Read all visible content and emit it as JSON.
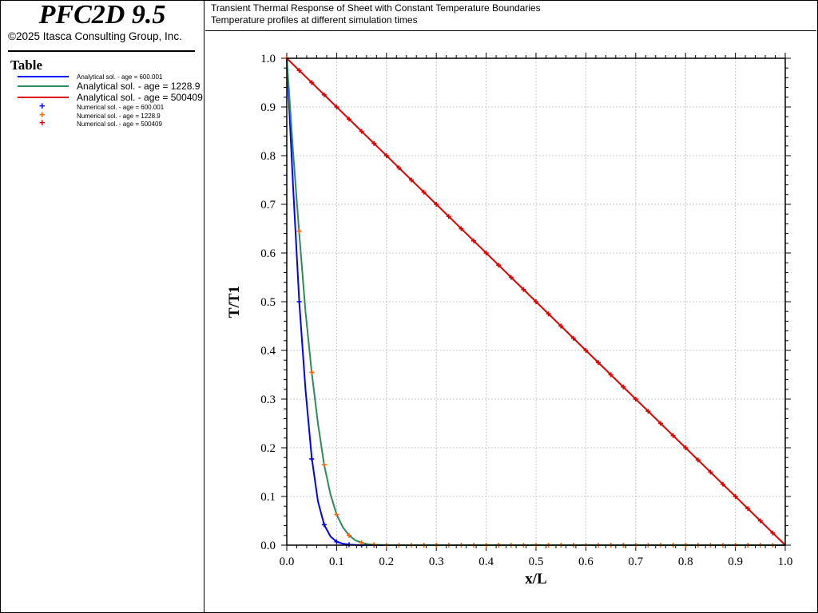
{
  "app": {
    "title": "PFC2D 9.5",
    "copyright": "©2025 Itasca Consulting Group, Inc."
  },
  "legend": {
    "title": "Table",
    "entries": [
      {
        "label": "Analytical sol. - age = 600.001",
        "kind": "line",
        "color": "#0000ff",
        "size": "small"
      },
      {
        "label": "Analytical sol. - age = 1228.9",
        "kind": "line",
        "color": "#2e8b57",
        "size": "big"
      },
      {
        "label": "Analytical sol. - age = 500409",
        "kind": "line",
        "color": "#e00000",
        "size": "big"
      },
      {
        "label": "Numerical sol. - age = 600.001",
        "kind": "marker",
        "color": "#0000ff",
        "size": "small"
      },
      {
        "label": "Numerical sol. - age = 1228.9",
        "kind": "marker",
        "color": "#ff6600",
        "size": "small"
      },
      {
        "label": "Numerical sol. - age = 500409",
        "kind": "marker",
        "color": "#e00000",
        "size": "small"
      }
    ]
  },
  "header": {
    "line1": "Transient Thermal Response of Sheet with Constant Temperature Boundaries",
    "line2": "Temperature profiles at different simulation times"
  },
  "chart_data": {
    "type": "line",
    "xlabel": "x/L",
    "ylabel": "T/T1",
    "xlim": [
      0,
      1
    ],
    "ylim": [
      0,
      1
    ],
    "xticks": [
      "0.0",
      "0.1",
      "0.2",
      "0.3",
      "0.4",
      "0.5",
      "0.6",
      "0.7",
      "0.8",
      "0.9",
      "1.0"
    ],
    "yticks": [
      "0.0",
      "0.1",
      "0.2",
      "0.3",
      "0.4",
      "0.5",
      "0.6",
      "0.7",
      "0.8",
      "0.9",
      "1.0"
    ],
    "grid": true,
    "series": [
      {
        "name": "Analytical sol. - age = 600.001",
        "kind": "line",
        "color": "#0000ff",
        "x": [
          0,
          0.0125,
          0.025,
          0.0375,
          0.05,
          0.0625,
          0.075,
          0.0875,
          0.1,
          0.1125,
          0.125,
          0.15,
          0.175,
          0.2
        ],
        "y": [
          1.0,
          0.74,
          0.5,
          0.32,
          0.18,
          0.09,
          0.042,
          0.018,
          0.007,
          0.003,
          0.001,
          0.0,
          0.0,
          0.0
        ]
      },
      {
        "name": "Analytical sol. - age = 1228.9",
        "kind": "line",
        "color": "#2e8b57",
        "x": [
          0,
          0.0125,
          0.025,
          0.0375,
          0.05,
          0.0625,
          0.075,
          0.0875,
          0.1,
          0.1125,
          0.125,
          0.1375,
          0.15,
          0.1625,
          0.175,
          0.2,
          1.0
        ],
        "y": [
          1.0,
          0.81,
          0.64,
          0.48,
          0.355,
          0.25,
          0.165,
          0.105,
          0.063,
          0.037,
          0.02,
          0.01,
          0.005,
          0.002,
          0.001,
          0.0,
          0.0
        ]
      },
      {
        "name": "Analytical sol. - age = 500409",
        "kind": "line",
        "color": "#e00000",
        "x": [
          0,
          1
        ],
        "y": [
          1.0,
          0.0
        ]
      },
      {
        "name": "Numerical sol. - age = 600.001",
        "kind": "marker",
        "color": "#0000ff",
        "x": [
          0,
          0.025,
          0.05,
          0.075,
          0.1,
          0.125,
          0.15,
          0.175
        ],
        "y": [
          1.0,
          0.5,
          0.177,
          0.042,
          0.007,
          0.001,
          0.0,
          0.0
        ]
      },
      {
        "name": "Numerical sol. - age = 1228.9",
        "kind": "marker",
        "color": "#ff6600",
        "x": [
          0,
          0.025,
          0.05,
          0.075,
          0.1,
          0.125,
          0.15,
          0.175,
          0.2,
          0.225,
          0.25,
          0.275,
          0.3,
          0.325,
          0.35,
          0.375,
          0.4,
          0.425,
          0.45,
          0.475,
          0.5,
          0.525,
          0.55,
          0.575,
          0.6,
          0.625,
          0.65,
          0.675,
          0.7,
          0.725,
          0.75,
          0.775,
          0.8,
          0.825,
          0.85,
          0.875,
          0.9,
          0.925,
          0.95,
          0.975
        ],
        "y": [
          1.0,
          0.645,
          0.355,
          0.165,
          0.063,
          0.02,
          0.005,
          0.001,
          0.0,
          0.0,
          0.0,
          0.0,
          0.0,
          0.0,
          0.0,
          0.0,
          0.0,
          0.0,
          0.0,
          0.0,
          0.0,
          0.0,
          0.0,
          0.0,
          0.0,
          0.0,
          0.0,
          0.0,
          0.0,
          0.0,
          0.0,
          0.0,
          0.0,
          0.0,
          0.0,
          0.0,
          0.0,
          0.0,
          0.0,
          0.0
        ]
      },
      {
        "name": "Numerical sol. - age = 500409",
        "kind": "marker",
        "color": "#e00000",
        "x": [
          0.025,
          0.05,
          0.075,
          0.1,
          0.125,
          0.15,
          0.175,
          0.2,
          0.225,
          0.25,
          0.275,
          0.3,
          0.325,
          0.35,
          0.375,
          0.4,
          0.425,
          0.45,
          0.475,
          0.5,
          0.525,
          0.55,
          0.575,
          0.6,
          0.625,
          0.65,
          0.675,
          0.7,
          0.725,
          0.75,
          0.775,
          0.8,
          0.825,
          0.85,
          0.875,
          0.9,
          0.925,
          0.95,
          0.975
        ],
        "y": [
          0.975,
          0.95,
          0.925,
          0.9,
          0.875,
          0.85,
          0.825,
          0.8,
          0.775,
          0.75,
          0.725,
          0.7,
          0.675,
          0.65,
          0.625,
          0.6,
          0.575,
          0.55,
          0.525,
          0.5,
          0.475,
          0.45,
          0.425,
          0.4,
          0.375,
          0.35,
          0.325,
          0.3,
          0.275,
          0.25,
          0.225,
          0.2,
          0.175,
          0.15,
          0.125,
          0.1,
          0.075,
          0.05,
          0.025
        ]
      }
    ]
  }
}
